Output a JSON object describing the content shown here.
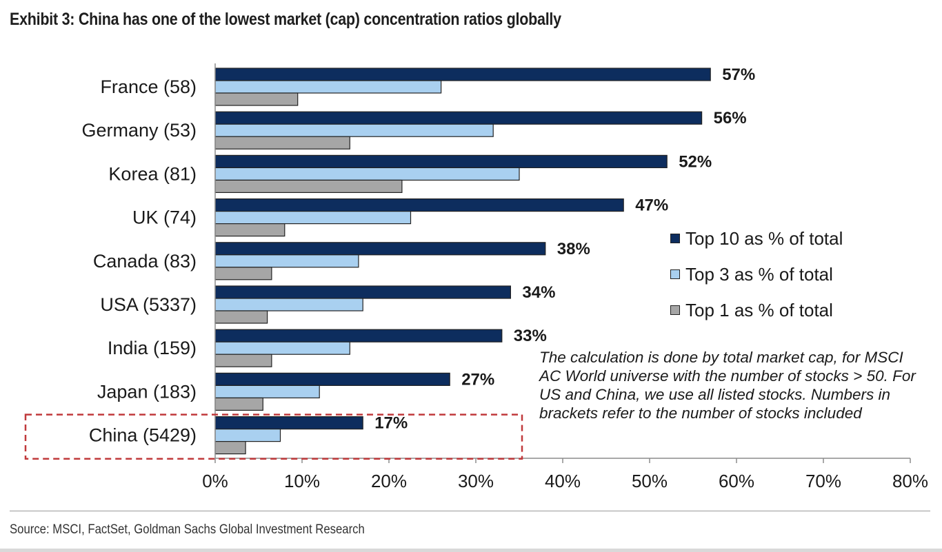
{
  "title": "Exhibit 3: China has one of the lowest market (cap) concentration ratios globally",
  "source": "Source: MSCI, FactSet, Goldman Sachs Global Investment Research",
  "note": "The calculation is done by total market cap, for MSCI AC World universe with the number of stocks > 50. For US and China, we use all listed stocks. Numbers in brackets refer to the number of stocks included",
  "colors": {
    "top10": "#0d2d5e",
    "top3": "#a9d0f0",
    "top1": "#a6a6a6",
    "highlight": "#c0393b"
  },
  "chart_data": {
    "type": "bar",
    "orientation": "horizontal",
    "categories": [
      "France (58)",
      "Germany (53)",
      "Korea (81)",
      "UK (74)",
      "Canada (83)",
      "USA (5337)",
      "India (159)",
      "Japan (183)",
      "China (5429)"
    ],
    "series": [
      {
        "name": "Top 10 as % of total",
        "values": [
          57,
          56,
          52,
          47,
          38,
          34,
          33,
          27,
          17
        ]
      },
      {
        "name": "Top 3 as % of total",
        "values": [
          26,
          32,
          35,
          22.5,
          16.5,
          17,
          15.5,
          12,
          7.5
        ]
      },
      {
        "name": "Top 1 as % of total",
        "values": [
          9.5,
          15.5,
          21.5,
          8,
          6.5,
          6,
          6.5,
          5.5,
          3.5
        ]
      }
    ],
    "data_labels": [
      "57%",
      "56%",
      "52%",
      "47%",
      "38%",
      "34%",
      "33%",
      "27%",
      "17%"
    ],
    "xlim": [
      0,
      80
    ],
    "x_ticks": [
      "0%",
      "10%",
      "20%",
      "30%",
      "40%",
      "50%",
      "60%",
      "70%",
      "80%"
    ],
    "grid": false,
    "legend_position": "right",
    "highlighted_category": "China (5429)"
  }
}
